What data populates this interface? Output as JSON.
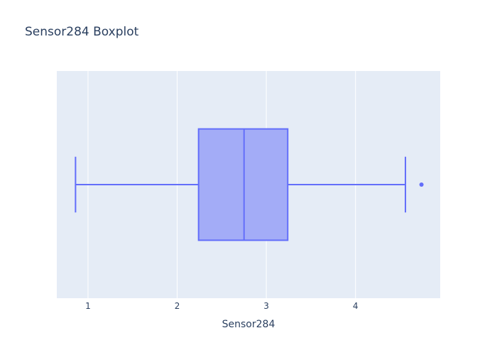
{
  "chart_data": {
    "type": "box",
    "title": "Sensor284 Boxplot",
    "xlabel": "Sensor284",
    "ylabel": "",
    "orientation": "horizontal",
    "xlim": [
      0.65,
      4.95
    ],
    "xticks": [
      1,
      2,
      3,
      4
    ],
    "grid": true,
    "legend": "none",
    "colors": {
      "plot_background": "#e5ecf6",
      "box_fill": "#a3acf7",
      "box_line": "#636efa",
      "grid": "#ffffff",
      "text": "#2a3f5f"
    },
    "series": [
      {
        "name": "Sensor284",
        "min": 0.86,
        "q1": 2.24,
        "median": 2.75,
        "q3": 3.24,
        "max": 4.56,
        "outliers": [
          4.74
        ]
      }
    ]
  }
}
